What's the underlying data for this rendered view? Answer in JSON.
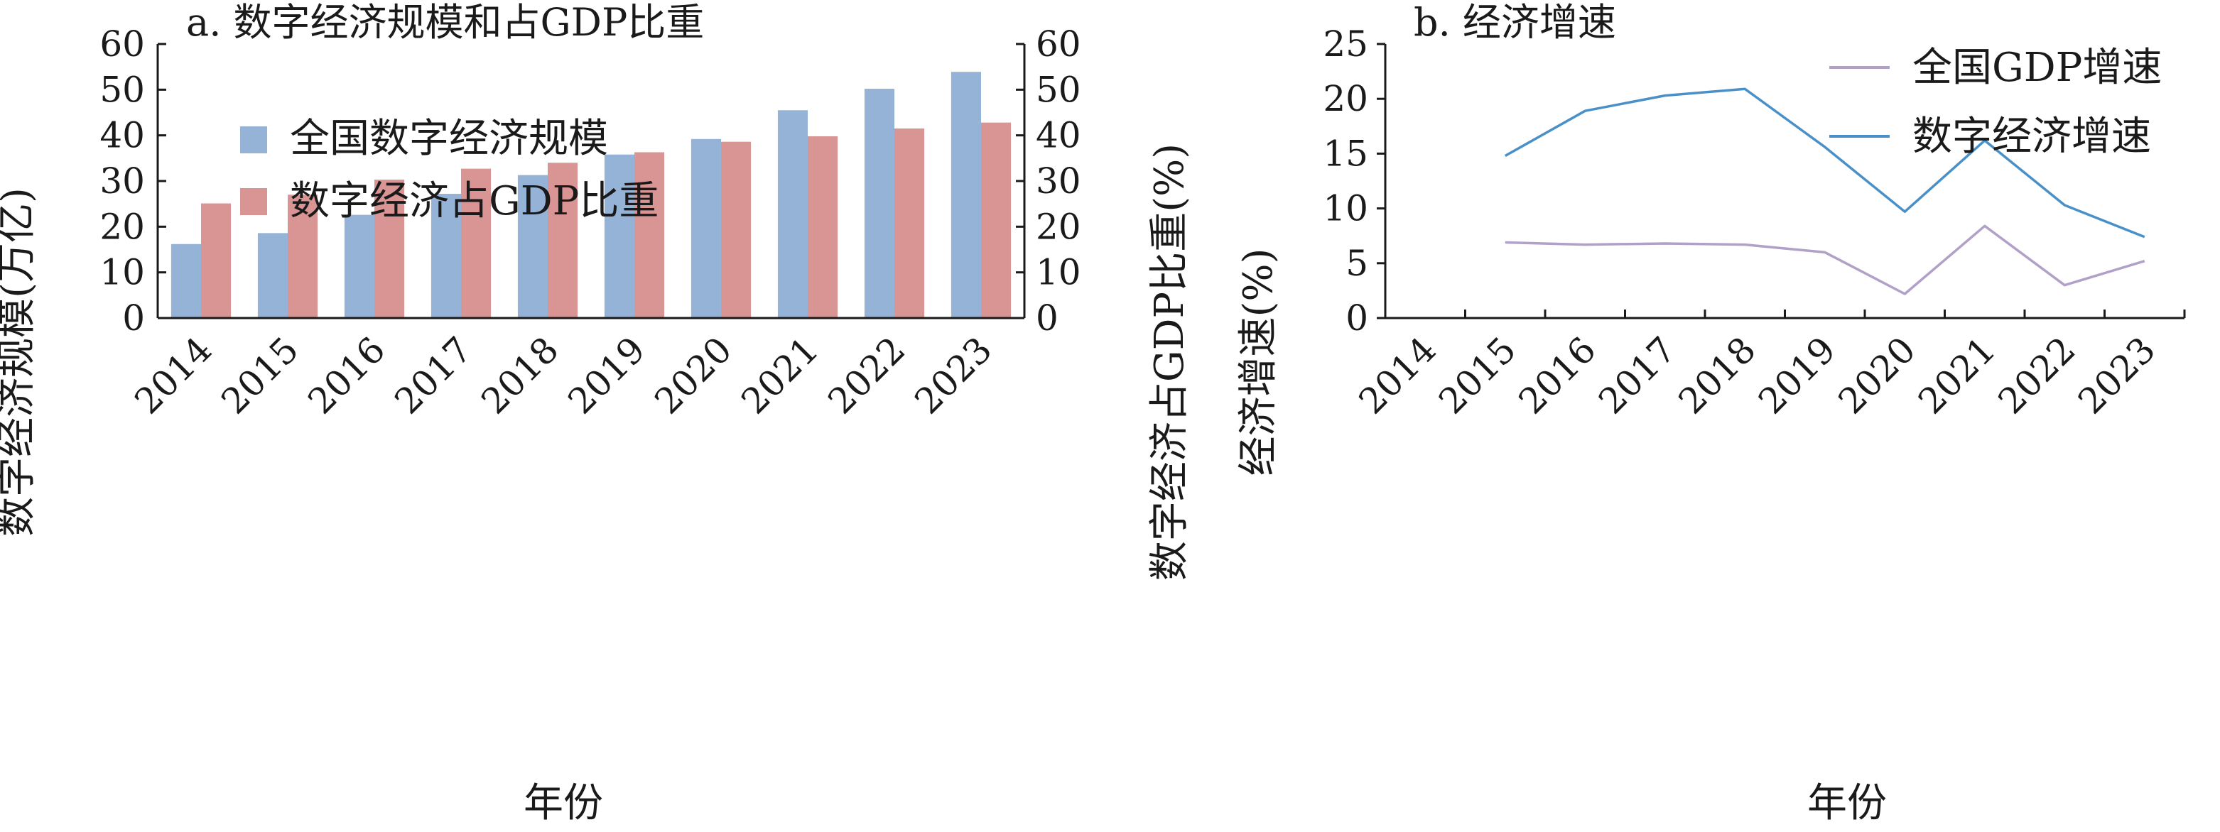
{
  "chart_data": [
    {
      "type": "bar",
      "title": "a. 数字经济规模和占GDP比重",
      "xlabel": "年份",
      "ylabel": "数字经济规模(万亿)",
      "y2label": "数字经济占GDP比重(%)",
      "ylim": [
        0,
        60
      ],
      "y2lim": [
        0,
        60
      ],
      "yticks": [
        "0",
        "10",
        "20",
        "30",
        "40",
        "50",
        "60"
      ],
      "y2ticks": [
        "0",
        "10",
        "20",
        "30",
        "40",
        "50",
        "60"
      ],
      "categories": [
        "2014",
        "2015",
        "2016",
        "2017",
        "2018",
        "2019",
        "2020",
        "2021",
        "2022",
        "2023"
      ],
      "series": [
        {
          "name": "全国数字经济规模",
          "color": "#95b3d7",
          "axis": "left",
          "values": [
            16.2,
            18.6,
            22.6,
            27.2,
            31.3,
            35.8,
            39.2,
            45.5,
            50.2,
            53.9
          ]
        },
        {
          "name": "数字经济占GDP比重",
          "color": "#d99594",
          "axis": "right",
          "values": [
            25.1,
            27.0,
            30.3,
            32.7,
            34.0,
            36.3,
            38.6,
            39.8,
            41.5,
            42.8
          ]
        }
      ],
      "legend_position": "top-left"
    },
    {
      "type": "line",
      "title": "b. 经济增速",
      "xlabel": "年份",
      "ylabel": "经济增速(%)",
      "ylim": [
        0,
        25
      ],
      "yticks": [
        "0",
        "5",
        "10",
        "15",
        "20",
        "25"
      ],
      "categories": [
        "2014",
        "2015",
        "2016",
        "2017",
        "2018",
        "2019",
        "2020",
        "2021",
        "2022",
        "2023"
      ],
      "series": [
        {
          "name": "全国GDP增速",
          "color": "#b1a0c7",
          "x": [
            "2015",
            "2016",
            "2017",
            "2018",
            "2019",
            "2020",
            "2021",
            "2022",
            "2023"
          ],
          "values": [
            6.9,
            6.7,
            6.8,
            6.7,
            6.0,
            2.2,
            8.4,
            3.0,
            5.2
          ]
        },
        {
          "name": "数字经济增速",
          "color": "#4a90c8",
          "x": [
            "2015",
            "2016",
            "2017",
            "2018",
            "2019",
            "2020",
            "2021",
            "2022",
            "2023"
          ],
          "values": [
            14.8,
            18.9,
            20.3,
            20.9,
            15.6,
            9.7,
            16.2,
            10.3,
            7.4
          ]
        }
      ],
      "legend_position": "top-right"
    }
  ]
}
